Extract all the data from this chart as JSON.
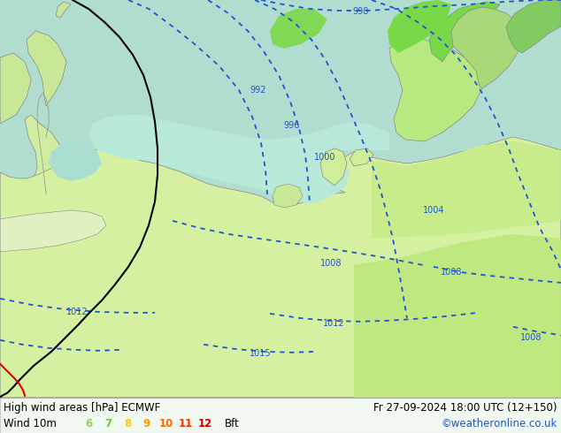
{
  "title_left": "High wind areas [hPa] ECMWF",
  "title_right": "Fr 27-09-2024 18:00 UTC (12+150)",
  "subtitle_left": "Wind 10m",
  "credit": "©weatheronline.co.uk",
  "bft_labels": [
    "6",
    "7",
    "8",
    "9",
    "10",
    "11",
    "12"
  ],
  "bft_colors": [
    "#99cc66",
    "#66cc33",
    "#ffcc00",
    "#ff9900",
    "#ff6600",
    "#ff3300",
    "#cc0000"
  ],
  "bft_label": "Bft",
  "sea_color": "#b8e8d8",
  "land_light": "#d4f0a0",
  "land_medium": "#c8ec8c",
  "land_bright": "#78d848",
  "land_pale": "#e8f8c8",
  "land_gray": "#d0d8c8",
  "fig_width": 6.34,
  "fig_height": 4.9,
  "isobar_color": "#2255cc",
  "border_color": "#888888",
  "bottom_bar_color": "#f0f8f0",
  "text_color_black": "#000000",
  "text_color_blue": "#2255cc"
}
